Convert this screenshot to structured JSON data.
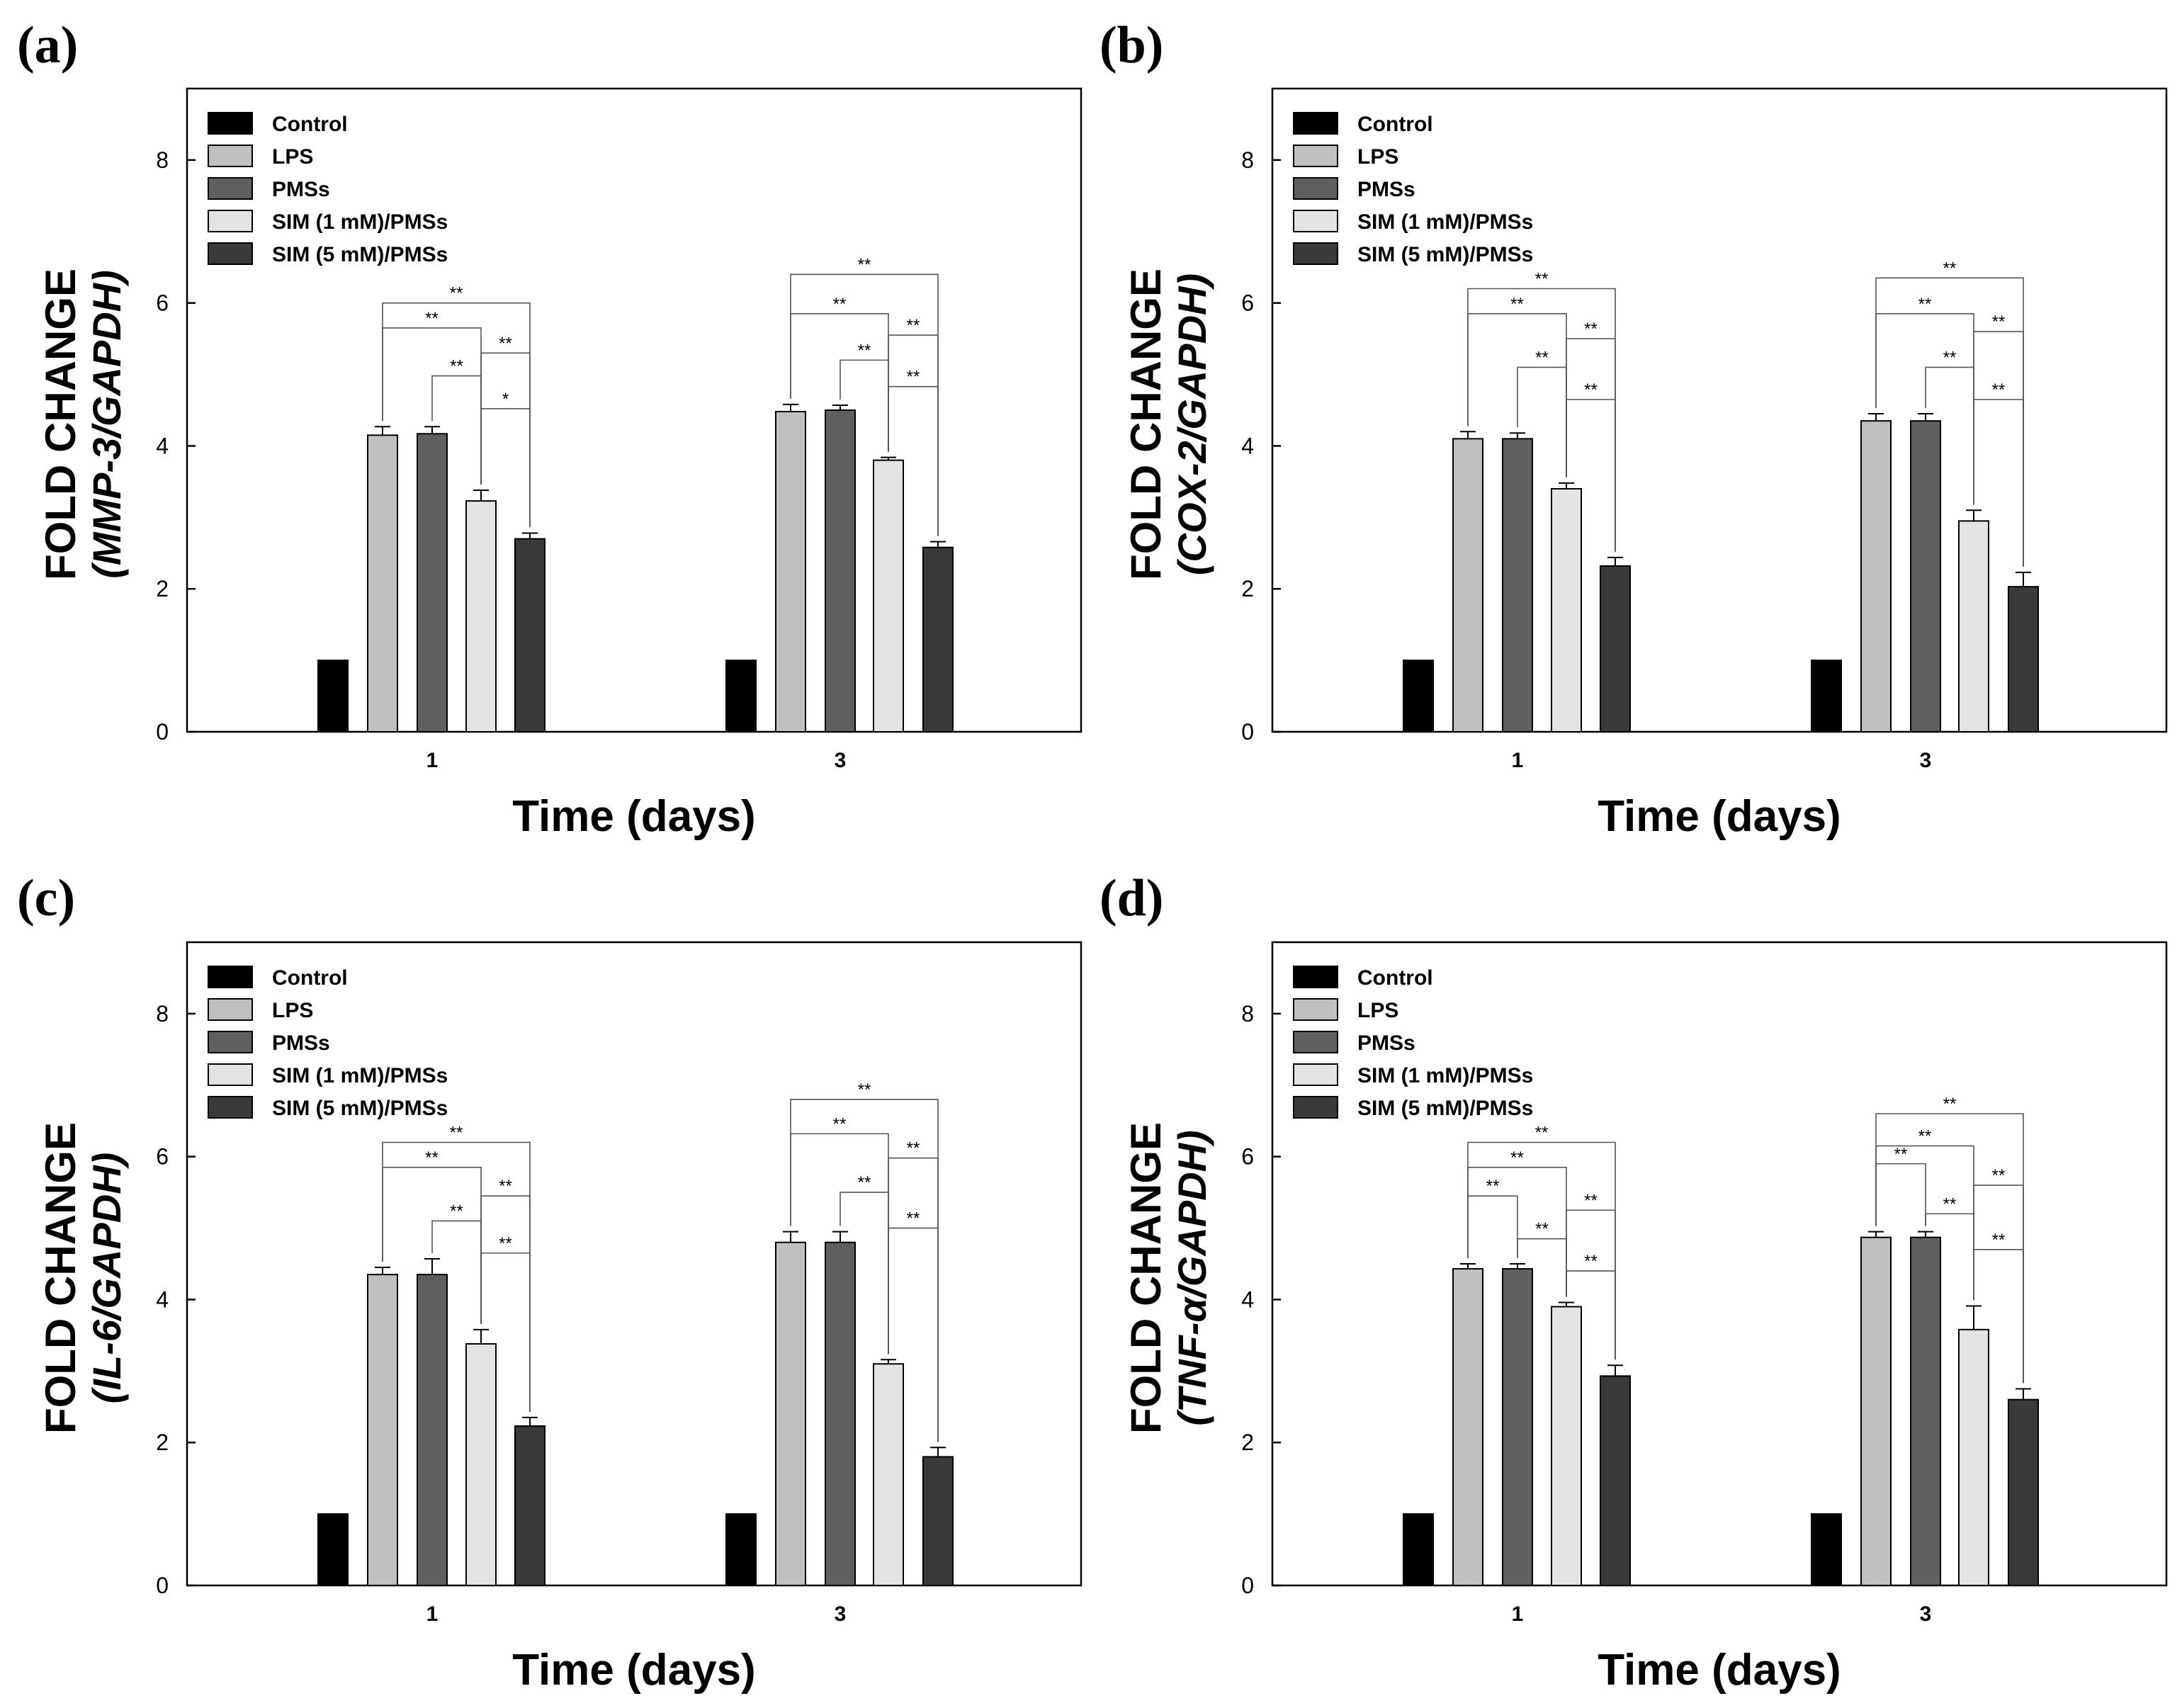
{
  "series_styles": {
    "Control": {
      "fill": "#000000"
    },
    "LPS": {
      "fill": "#c0c0c0"
    },
    "PMSs": {
      "fill": "#5f5f5f"
    },
    "SIM (1 mM)/PMSs": {
      "fill": "#e3e3e3"
    },
    "SIM (5 mM)/PMSs": {
      "fill": "#3a3a3a"
    }
  },
  "chart_data": [
    {
      "panel": "(a)",
      "type": "bar",
      "title": "",
      "xlabel": "Time (days)",
      "ylabel_prefix": "FOLD CHANGE",
      "ylabel_gene": "(MMP-3/GAPDH)",
      "ylim": [
        0,
        9
      ],
      "yticks": [
        0,
        2,
        4,
        6,
        8
      ],
      "categories": [
        "1",
        "3"
      ],
      "legend": [
        "Control",
        "LPS",
        "PMSs",
        "SIM (1 mM)/PMSs",
        "SIM (5 mM)/PMSs"
      ],
      "series": [
        {
          "name": "Control",
          "values": [
            1.0,
            1.0
          ],
          "errors": [
            0,
            0
          ]
        },
        {
          "name": "LPS",
          "values": [
            4.15,
            4.48
          ],
          "errors": [
            0.12,
            0.1
          ]
        },
        {
          "name": "PMSs",
          "values": [
            4.17,
            4.5
          ],
          "errors": [
            0.1,
            0.07
          ]
        },
        {
          "name": "SIM (1 mM)/PMSs",
          "values": [
            3.23,
            3.8
          ],
          "errors": [
            0.15,
            0.04
          ]
        },
        {
          "name": "SIM (5 mM)/PMSs",
          "values": [
            2.7,
            2.58
          ],
          "errors": [
            0.08,
            0.08
          ]
        }
      ],
      "significance": [
        [
          {
            "from": 1,
            "to": 4,
            "y": 6.0,
            "label": "**"
          },
          {
            "from": 1,
            "to": 3,
            "y": 5.65,
            "label": "**"
          },
          {
            "from": 3,
            "to": 4,
            "y": 5.3,
            "label": "**"
          },
          {
            "from": 2,
            "to": 3,
            "y": 4.98,
            "label": "**"
          },
          {
            "from": 3,
            "to": 4,
            "y": 4.52,
            "label": "*"
          }
        ],
        [
          {
            "from": 1,
            "to": 4,
            "y": 6.4,
            "label": "**"
          },
          {
            "from": 1,
            "to": 3,
            "y": 5.85,
            "label": "**"
          },
          {
            "from": 3,
            "to": 4,
            "y": 5.55,
            "label": "**"
          },
          {
            "from": 2,
            "to": 3,
            "y": 5.2,
            "label": "**"
          },
          {
            "from": 3,
            "to": 4,
            "y": 4.83,
            "label": "**"
          }
        ]
      ]
    },
    {
      "panel": "(b)",
      "type": "bar",
      "title": "",
      "xlabel": "Time (days)",
      "ylabel_prefix": "FOLD CHANGE",
      "ylabel_gene": "(COX-2/GAPDH)",
      "ylim": [
        0,
        9
      ],
      "yticks": [
        0,
        2,
        4,
        6,
        8
      ],
      "categories": [
        "1",
        "3"
      ],
      "legend": [
        "Control",
        "LPS",
        "PMSs",
        "SIM (1 mM)/PMSs",
        "SIM (5 mM)/PMSs"
      ],
      "series": [
        {
          "name": "Control",
          "values": [
            1.0,
            1.0
          ],
          "errors": [
            0,
            0
          ]
        },
        {
          "name": "LPS",
          "values": [
            4.1,
            4.35
          ],
          "errors": [
            0.1,
            0.1
          ]
        },
        {
          "name": "PMSs",
          "values": [
            4.1,
            4.35
          ],
          "errors": [
            0.08,
            0.1
          ]
        },
        {
          "name": "SIM (1 mM)/PMSs",
          "values": [
            3.4,
            2.95
          ],
          "errors": [
            0.08,
            0.15
          ]
        },
        {
          "name": "SIM (5 mM)/PMSs",
          "values": [
            2.32,
            2.03
          ],
          "errors": [
            0.12,
            0.2
          ]
        }
      ],
      "significance": [
        [
          {
            "from": 1,
            "to": 4,
            "y": 6.2,
            "label": "**"
          },
          {
            "from": 1,
            "to": 3,
            "y": 5.85,
            "label": "**"
          },
          {
            "from": 3,
            "to": 4,
            "y": 5.5,
            "label": "**"
          },
          {
            "from": 2,
            "to": 3,
            "y": 5.1,
            "label": "**"
          },
          {
            "from": 3,
            "to": 4,
            "y": 4.65,
            "label": "**"
          }
        ],
        [
          {
            "from": 1,
            "to": 4,
            "y": 6.35,
            "label": "**"
          },
          {
            "from": 1,
            "to": 3,
            "y": 5.85,
            "label": "**"
          },
          {
            "from": 3,
            "to": 4,
            "y": 5.6,
            "label": "**"
          },
          {
            "from": 2,
            "to": 3,
            "y": 5.1,
            "label": "**"
          },
          {
            "from": 3,
            "to": 4,
            "y": 4.65,
            "label": "**"
          }
        ]
      ]
    },
    {
      "panel": "(c)",
      "type": "bar",
      "title": "",
      "xlabel": "Time (days)",
      "ylabel_prefix": "FOLD CHANGE",
      "ylabel_gene": "(IL-6/GAPDH)",
      "ylim": [
        0,
        9
      ],
      "yticks": [
        0,
        2,
        4,
        6,
        8
      ],
      "categories": [
        "1",
        "3"
      ],
      "legend": [
        "Control",
        "LPS",
        "PMSs",
        "SIM (1 mM)/PMSs",
        "SIM (5 mM)/PMSs"
      ],
      "series": [
        {
          "name": "Control",
          "values": [
            1.0,
            1.0
          ],
          "errors": [
            0,
            0
          ]
        },
        {
          "name": "LPS",
          "values": [
            4.35,
            4.8
          ],
          "errors": [
            0.1,
            0.15
          ]
        },
        {
          "name": "PMSs",
          "values": [
            4.35,
            4.8
          ],
          "errors": [
            0.22,
            0.15
          ]
        },
        {
          "name": "SIM (1 mM)/PMSs",
          "values": [
            3.38,
            3.1
          ],
          "errors": [
            0.2,
            0.06
          ]
        },
        {
          "name": "SIM (5 mM)/PMSs",
          "values": [
            2.23,
            1.8
          ],
          "errors": [
            0.12,
            0.13
          ]
        }
      ],
      "significance": [
        [
          {
            "from": 1,
            "to": 4,
            "y": 6.2,
            "label": "**"
          },
          {
            "from": 1,
            "to": 3,
            "y": 5.85,
            "label": "**"
          },
          {
            "from": 3,
            "to": 4,
            "y": 5.45,
            "label": "**"
          },
          {
            "from": 2,
            "to": 3,
            "y": 5.1,
            "label": "**"
          },
          {
            "from": 3,
            "to": 4,
            "y": 4.65,
            "label": "**"
          }
        ],
        [
          {
            "from": 1,
            "to": 4,
            "y": 6.8,
            "label": "**"
          },
          {
            "from": 1,
            "to": 3,
            "y": 6.32,
            "label": "**"
          },
          {
            "from": 3,
            "to": 4,
            "y": 5.98,
            "label": "**"
          },
          {
            "from": 2,
            "to": 3,
            "y": 5.5,
            "label": "**"
          },
          {
            "from": 3,
            "to": 4,
            "y": 5.0,
            "label": "**"
          }
        ]
      ]
    },
    {
      "panel": "(d)",
      "type": "bar",
      "title": "",
      "xlabel": "Time (days)",
      "ylabel_prefix": "FOLD CHANGE",
      "ylabel_gene": "(TNF-α/GAPDH)",
      "ylim": [
        0,
        9
      ],
      "yticks": [
        0,
        2,
        4,
        6,
        8
      ],
      "categories": [
        "1",
        "3"
      ],
      "legend": [
        "Control",
        "LPS",
        "PMSs",
        "SIM (1 mM)/PMSs",
        "SIM (5 mM)/PMSs"
      ],
      "series": [
        {
          "name": "Control",
          "values": [
            1.0,
            1.0
          ],
          "errors": [
            0,
            0
          ]
        },
        {
          "name": "LPS",
          "values": [
            4.43,
            4.87
          ],
          "errors": [
            0.07,
            0.08
          ]
        },
        {
          "name": "PMSs",
          "values": [
            4.43,
            4.87
          ],
          "errors": [
            0.07,
            0.08
          ]
        },
        {
          "name": "SIM (1 mM)/PMSs",
          "values": [
            3.9,
            3.58
          ],
          "errors": [
            0.06,
            0.33
          ]
        },
        {
          "name": "SIM (5 mM)/PMSs",
          "values": [
            2.93,
            2.6
          ],
          "errors": [
            0.15,
            0.15
          ]
        }
      ],
      "significance": [
        [
          {
            "from": 1,
            "to": 4,
            "y": 6.2,
            "label": "**"
          },
          {
            "from": 1,
            "to": 3,
            "y": 5.85,
            "label": "**"
          },
          {
            "from": 1,
            "to": 2,
            "y": 5.45,
            "label": "**"
          },
          {
            "from": 3,
            "to": 4,
            "y": 5.25,
            "label": "**"
          },
          {
            "from": 2,
            "to": 3,
            "y": 4.85,
            "label": "**"
          },
          {
            "from": 3,
            "to": 4,
            "y": 4.4,
            "label": "**"
          }
        ],
        [
          {
            "from": 1,
            "to": 4,
            "y": 6.6,
            "label": "**"
          },
          {
            "from": 1,
            "to": 3,
            "y": 6.15,
            "label": "**"
          },
          {
            "from": 1,
            "to": 2,
            "y": 5.9,
            "label": "**"
          },
          {
            "from": 3,
            "to": 4,
            "y": 5.6,
            "label": "**"
          },
          {
            "from": 2,
            "to": 3,
            "y": 5.2,
            "label": "**"
          },
          {
            "from": 3,
            "to": 4,
            "y": 4.7,
            "label": "**"
          }
        ]
      ]
    }
  ]
}
